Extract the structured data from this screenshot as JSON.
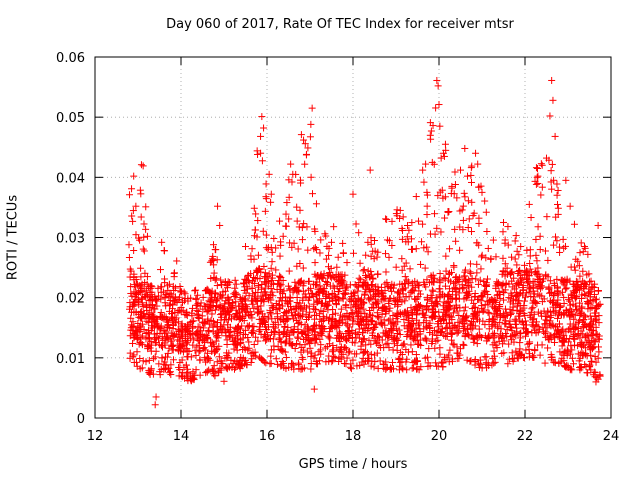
{
  "chart_data": {
    "type": "scatter",
    "title": "Day 060 of 2017, Rate Of TEC Index for receiver mtsr",
    "xlabel": "GPS time / hours",
    "ylabel": "ROTI / TECUs",
    "xlim": [
      12,
      24
    ],
    "ylim": [
      0,
      0.06
    ],
    "x_ticks": [
      12,
      14,
      16,
      18,
      20,
      22,
      24
    ],
    "x_tick_labels": [
      "12",
      "14",
      "16",
      "18",
      "20",
      "22",
      "24"
    ],
    "y_ticks": [
      0,
      0.01,
      0.02,
      0.03,
      0.04,
      0.05,
      0.06
    ],
    "y_tick_labels": [
      "0",
      "0.01",
      "0.02",
      "0.03",
      "0.04",
      "0.05",
      "0.06"
    ],
    "grid": true,
    "marker": "+",
    "color": "#ff0000",
    "envelope": {
      "x": [
        12.8,
        13.0,
        13.2,
        13.4,
        13.6,
        13.8,
        14.0,
        14.2,
        14.5,
        14.8,
        15.0,
        15.3,
        15.6,
        15.8,
        16.0,
        16.2,
        16.5,
        16.8,
        17.0,
        17.2,
        17.5,
        17.8,
        18.0,
        18.3,
        18.6,
        19.0,
        19.3,
        19.6,
        19.9,
        20.0,
        20.2,
        20.5,
        20.8,
        21.0,
        21.3,
        21.6,
        21.9,
        22.2,
        22.5,
        22.6,
        22.8,
        23.0,
        23.3,
        23.6,
        23.75
      ],
      "low": [
        0.01,
        0.008,
        0.008,
        0.006,
        0.008,
        0.007,
        0.007,
        0.006,
        0.007,
        0.007,
        0.008,
        0.008,
        0.009,
        0.01,
        0.009,
        0.009,
        0.008,
        0.008,
        0.008,
        0.009,
        0.009,
        0.009,
        0.008,
        0.009,
        0.008,
        0.008,
        0.008,
        0.008,
        0.009,
        0.008,
        0.009,
        0.01,
        0.009,
        0.008,
        0.009,
        0.009,
        0.01,
        0.01,
        0.009,
        0.009,
        0.009,
        0.008,
        0.008,
        0.007,
        0.006
      ],
      "high": [
        0.04,
        0.042,
        0.03,
        0.02,
        0.029,
        0.026,
        0.02,
        0.018,
        0.022,
        0.03,
        0.02,
        0.022,
        0.025,
        0.048,
        0.04,
        0.032,
        0.04,
        0.046,
        0.05,
        0.035,
        0.028,
        0.03,
        0.033,
        0.03,
        0.032,
        0.035,
        0.034,
        0.04,
        0.056,
        0.054,
        0.044,
        0.04,
        0.043,
        0.04,
        0.03,
        0.032,
        0.03,
        0.04,
        0.05,
        0.055,
        0.035,
        0.038,
        0.03,
        0.026,
        0.03
      ]
    },
    "points": [
      [
        12.79,
        0.0288
      ],
      [
        12.85,
        0.0381
      ],
      [
        12.9,
        0.0402
      ],
      [
        12.95,
        0.0352
      ],
      [
        13.08,
        0.0421
      ],
      [
        13.12,
        0.0419
      ],
      [
        13.18,
        0.0351
      ],
      [
        13.22,
        0.0302
      ],
      [
        13.4,
        0.0022
      ],
      [
        13.42,
        0.0035
      ],
      [
        13.55,
        0.0292
      ],
      [
        13.62,
        0.0225
      ],
      [
        13.9,
        0.0261
      ],
      [
        14.05,
        0.0179
      ],
      [
        14.6,
        0.0212
      ],
      [
        14.85,
        0.0352
      ],
      [
        14.9,
        0.032
      ],
      [
        15.0,
        0.0061
      ],
      [
        15.5,
        0.0285
      ],
      [
        15.78,
        0.0438
      ],
      [
        15.85,
        0.0468
      ],
      [
        15.88,
        0.0501
      ],
      [
        15.92,
        0.0482
      ],
      [
        16.05,
        0.0405
      ],
      [
        16.1,
        0.0372
      ],
      [
        16.55,
        0.0422
      ],
      [
        16.6,
        0.0405
      ],
      [
        16.8,
        0.0471
      ],
      [
        16.85,
        0.0462
      ],
      [
        17.05,
        0.0515
      ],
      [
        17.02,
        0.0488
      ],
      [
        17.1,
        0.0048
      ],
      [
        17.15,
        0.0356
      ],
      [
        17.25,
        0.0296
      ],
      [
        17.5,
        0.0292
      ],
      [
        17.55,
        0.0318
      ],
      [
        18.0,
        0.0372
      ],
      [
        18.4,
        0.0412
      ],
      [
        18.5,
        0.0295
      ],
      [
        19.1,
        0.0345
      ],
      [
        19.3,
        0.0312
      ],
      [
        19.62,
        0.0412
      ],
      [
        19.65,
        0.0392
      ],
      [
        19.95,
        0.0561
      ],
      [
        19.98,
        0.0552
      ],
      [
        20.0,
        0.0521
      ],
      [
        20.02,
        0.0485
      ],
      [
        20.05,
        0.0432
      ],
      [
        20.15,
        0.0455
      ],
      [
        20.3,
        0.0382
      ],
      [
        20.5,
        0.0412
      ],
      [
        20.6,
        0.0448
      ],
      [
        20.85,
        0.044
      ],
      [
        20.9,
        0.0422
      ],
      [
        21.0,
        0.0375
      ],
      [
        21.1,
        0.0342
      ],
      [
        21.5,
        0.0325
      ],
      [
        21.9,
        0.0285
      ],
      [
        22.1,
        0.0355
      ],
      [
        22.3,
        0.0402
      ],
      [
        22.4,
        0.042
      ],
      [
        22.5,
        0.0432
      ],
      [
        22.58,
        0.0502
      ],
      [
        22.62,
        0.0561
      ],
      [
        22.65,
        0.0528
      ],
      [
        22.7,
        0.0468
      ],
      [
        22.95,
        0.0395
      ],
      [
        23.05,
        0.0352
      ],
      [
        23.15,
        0.0322
      ],
      [
        23.4,
        0.0282
      ],
      [
        23.65,
        0.006
      ],
      [
        23.7,
        0.032
      ]
    ]
  }
}
